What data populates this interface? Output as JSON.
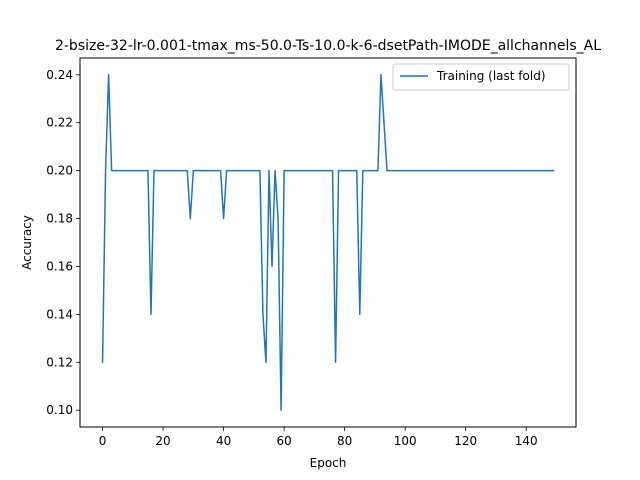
{
  "chart_data": {
    "type": "line",
    "title": "2-bsize-32-lr-0.001-tmax_ms-50.0-Ts-10.0-k-6-dsetPath-IMODE_allchannels_AL",
    "xlabel": "Epoch",
    "ylabel": "Accuracy",
    "xlim": [
      -7.45,
      156.45
    ],
    "ylim": [
      0.093,
      0.247
    ],
    "xticks": [
      0,
      20,
      40,
      60,
      80,
      100,
      120,
      140
    ],
    "yticks": [
      0.1,
      0.12,
      0.14,
      0.16,
      0.18,
      0.2,
      0.22,
      0.24
    ],
    "ytick_labels": [
      "0.10",
      "0.12",
      "0.14",
      "0.16",
      "0.18",
      "0.20",
      "0.22",
      "0.24"
    ],
    "grid": false,
    "legend_position": "upper right",
    "series": [
      {
        "name": "Training (last fold)",
        "color": "#1f77b4",
        "x": [
          0,
          1,
          2,
          3,
          4,
          5,
          6,
          7,
          8,
          9,
          10,
          11,
          12,
          13,
          14,
          15,
          16,
          17,
          18,
          19,
          20,
          21,
          22,
          23,
          24,
          25,
          26,
          27,
          28,
          29,
          30,
          31,
          32,
          33,
          34,
          35,
          36,
          37,
          38,
          39,
          40,
          41,
          42,
          43,
          44,
          45,
          46,
          47,
          48,
          49,
          50,
          51,
          52,
          53,
          54,
          55,
          56,
          57,
          58,
          59,
          60,
          61,
          62,
          63,
          64,
          65,
          66,
          67,
          68,
          69,
          70,
          71,
          72,
          73,
          74,
          75,
          76,
          77,
          78,
          79,
          80,
          81,
          82,
          83,
          84,
          85,
          86,
          87,
          88,
          89,
          90,
          91,
          92,
          93,
          94,
          95,
          96,
          97,
          98,
          99,
          100,
          101,
          102,
          103,
          104,
          105,
          106,
          107,
          108,
          109,
          110,
          111,
          112,
          113,
          114,
          115,
          116,
          117,
          118,
          119,
          120,
          121,
          122,
          123,
          124,
          125,
          126,
          127,
          128,
          129,
          130,
          131,
          132,
          133,
          134,
          135,
          136,
          137,
          138,
          139,
          140,
          141,
          142,
          143,
          144,
          145,
          146,
          147,
          148,
          149
        ],
        "y": [
          0.12,
          0.2,
          0.24,
          0.2,
          0.2,
          0.2,
          0.2,
          0.2,
          0.2,
          0.2,
          0.2,
          0.2,
          0.2,
          0.2,
          0.2,
          0.2,
          0.14,
          0.2,
          0.2,
          0.2,
          0.2,
          0.2,
          0.2,
          0.2,
          0.2,
          0.2,
          0.2,
          0.2,
          0.2,
          0.18,
          0.2,
          0.2,
          0.2,
          0.2,
          0.2,
          0.2,
          0.2,
          0.2,
          0.2,
          0.2,
          0.18,
          0.2,
          0.2,
          0.2,
          0.2,
          0.2,
          0.2,
          0.2,
          0.2,
          0.2,
          0.2,
          0.2,
          0.2,
          0.14,
          0.12,
          0.2,
          0.16,
          0.2,
          0.18,
          0.1,
          0.2,
          0.2,
          0.2,
          0.2,
          0.2,
          0.2,
          0.2,
          0.2,
          0.2,
          0.2,
          0.2,
          0.2,
          0.2,
          0.2,
          0.2,
          0.2,
          0.2,
          0.12,
          0.2,
          0.2,
          0.2,
          0.2,
          0.2,
          0.2,
          0.2,
          0.14,
          0.2,
          0.2,
          0.2,
          0.2,
          0.2,
          0.2,
          0.24,
          0.22,
          0.2,
          0.2,
          0.2,
          0.2,
          0.2,
          0.2,
          0.2,
          0.2,
          0.2,
          0.2,
          0.2,
          0.2,
          0.2,
          0.2,
          0.2,
          0.2,
          0.2,
          0.2,
          0.2,
          0.2,
          0.2,
          0.2,
          0.2,
          0.2,
          0.2,
          0.2,
          0.2,
          0.2,
          0.2,
          0.2,
          0.2,
          0.2,
          0.2,
          0.2,
          0.2,
          0.2,
          0.2,
          0.2,
          0.2,
          0.2,
          0.2,
          0.2,
          0.2,
          0.2,
          0.2,
          0.2,
          0.2,
          0.2,
          0.2,
          0.2,
          0.2,
          0.2,
          0.2,
          0.2,
          0.2,
          0.2
        ]
      }
    ]
  }
}
